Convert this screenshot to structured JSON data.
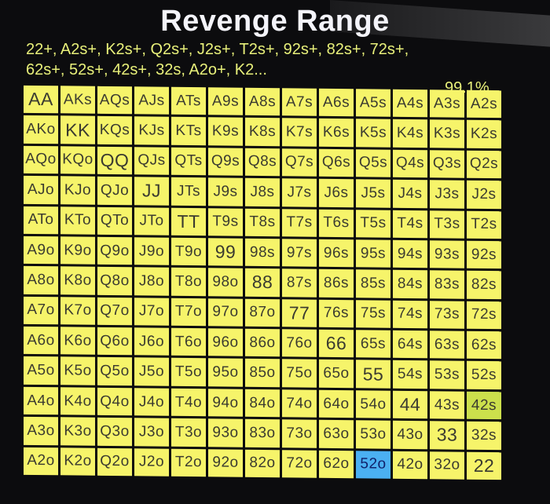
{
  "title": "Revenge Range",
  "description": "22+, A2s+, K2s+, Q2s+, J2s+, T2s+, 92s+, 82s+, 72s+, 62s+, 52s+, 42s+, 32s, A2o+, K2...",
  "percentage": "99.1%",
  "colors": {
    "selected": "#f6f46a",
    "highlight_blue": "#4bb0f2",
    "highlight_green": "#cce04c"
  },
  "highlights": {
    "52o": "blue",
    "42s": "green"
  },
  "grid": [
    [
      "AA",
      "AKs",
      "AQs",
      "AJs",
      "ATs",
      "A9s",
      "A8s",
      "A7s",
      "A6s",
      "A5s",
      "A4s",
      "A3s",
      "A2s"
    ],
    [
      "AKo",
      "KK",
      "KQs",
      "KJs",
      "KTs",
      "K9s",
      "K8s",
      "K7s",
      "K6s",
      "K5s",
      "K4s",
      "K3s",
      "K2s"
    ],
    [
      "AQo",
      "KQo",
      "QQ",
      "QJs",
      "QTs",
      "Q9s",
      "Q8s",
      "Q7s",
      "Q6s",
      "Q5s",
      "Q4s",
      "Q3s",
      "Q2s"
    ],
    [
      "AJo",
      "KJo",
      "QJo",
      "JJ",
      "JTs",
      "J9s",
      "J8s",
      "J7s",
      "J6s",
      "J5s",
      "J4s",
      "J3s",
      "J2s"
    ],
    [
      "ATo",
      "KTo",
      "QTo",
      "JTo",
      "TT",
      "T9s",
      "T8s",
      "T7s",
      "T6s",
      "T5s",
      "T4s",
      "T3s",
      "T2s"
    ],
    [
      "A9o",
      "K9o",
      "Q9o",
      "J9o",
      "T9o",
      "99",
      "98s",
      "97s",
      "96s",
      "95s",
      "94s",
      "93s",
      "92s"
    ],
    [
      "A8o",
      "K8o",
      "Q8o",
      "J8o",
      "T8o",
      "98o",
      "88",
      "87s",
      "86s",
      "85s",
      "84s",
      "83s",
      "82s"
    ],
    [
      "A7o",
      "K7o",
      "Q7o",
      "J7o",
      "T7o",
      "97o",
      "87o",
      "77",
      "76s",
      "75s",
      "74s",
      "73s",
      "72s"
    ],
    [
      "A6o",
      "K6o",
      "Q6o",
      "J6o",
      "T6o",
      "96o",
      "86o",
      "76o",
      "66",
      "65s",
      "64s",
      "63s",
      "62s"
    ],
    [
      "A5o",
      "K5o",
      "Q5o",
      "J5o",
      "T5o",
      "95o",
      "85o",
      "75o",
      "65o",
      "55",
      "54s",
      "53s",
      "52s"
    ],
    [
      "A4o",
      "K4o",
      "Q4o",
      "J4o",
      "T4o",
      "94o",
      "84o",
      "74o",
      "64o",
      "54o",
      "44",
      "43s",
      "42s"
    ],
    [
      "A3o",
      "K3o",
      "Q3o",
      "J3o",
      "T3o",
      "93o",
      "83o",
      "73o",
      "63o",
      "53o",
      "43o",
      "33",
      "32s"
    ],
    [
      "A2o",
      "K2o",
      "Q2o",
      "J2o",
      "T2o",
      "92o",
      "82o",
      "72o",
      "62o",
      "52o",
      "42o",
      "32o",
      "22"
    ]
  ]
}
